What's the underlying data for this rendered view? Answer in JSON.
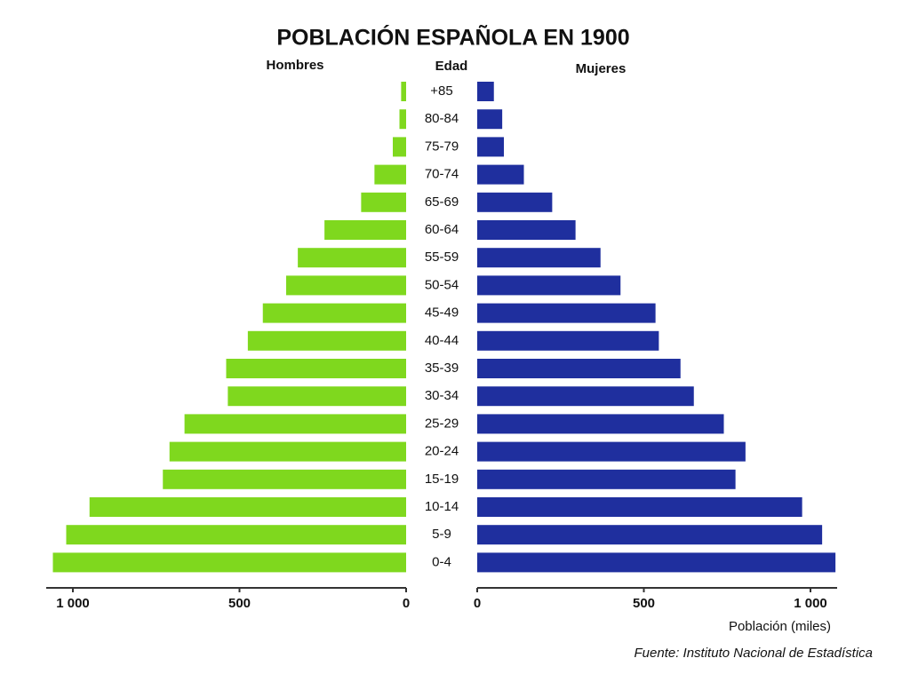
{
  "chart_data": {
    "type": "pyramid",
    "title": "POBLACIÓN ESPAÑOLA EN 1900",
    "category_label": "Edad",
    "xlabel": "Población (miles)",
    "source": "Fuente: Instituto Nacional de Estadística",
    "categories": [
      "+85",
      "80-84",
      "75-79",
      "70-74",
      "65-69",
      "60-64",
      "55-59",
      "50-54",
      "45-49",
      "40-44",
      "35-39",
      "30-34",
      "25-29",
      "20-24",
      "15-19",
      "10-14",
      "5-9",
      "0-4"
    ],
    "series": [
      {
        "name": "Hombres",
        "color": "#7fd81e",
        "values": [
          15,
          20,
          40,
          95,
          135,
          245,
          325,
          360,
          430,
          475,
          540,
          535,
          665,
          710,
          730,
          950,
          1020,
          1060
        ]
      },
      {
        "name": "Mujeres",
        "color": "#1f2f9e",
        "values": [
          50,
          75,
          80,
          140,
          225,
          295,
          370,
          430,
          535,
          545,
          610,
          650,
          740,
          805,
          775,
          975,
          1035,
          1075
        ]
      }
    ],
    "xlim": [
      0,
      1080
    ],
    "xticks": [
      0,
      500,
      {
        "value": 1000,
        "label": "1 000"
      }
    ]
  }
}
